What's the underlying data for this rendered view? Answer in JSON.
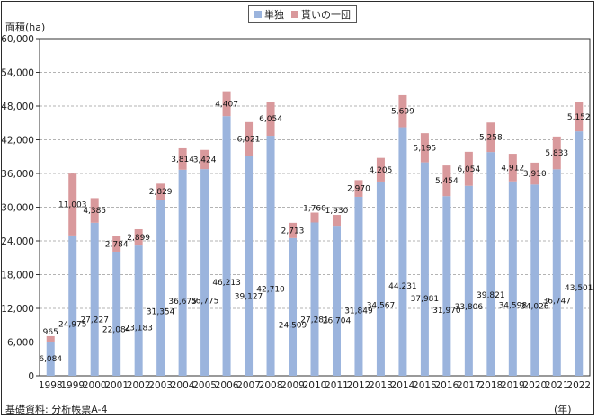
{
  "legend": {
    "items": [
      {
        "label": "単独",
        "color": "#9bb4dd"
      },
      {
        "label": "貰いの一団",
        "color": "#d9999c"
      }
    ]
  },
  "y_axis_label": "面積(ha)",
  "x_axis_unit": "(年)",
  "source": "基礎資料: 分析帳票A-4",
  "chart_data": {
    "type": "bar",
    "stacked": true,
    "categories": [
      "1998",
      "1999",
      "2000",
      "2001",
      "2002",
      "2003",
      "2004",
      "2005",
      "2006",
      "2007",
      "2008",
      "2009",
      "2010",
      "2011",
      "2012",
      "2013",
      "2014",
      "2015",
      "2016",
      "2017",
      "2018",
      "2019",
      "2020",
      "2021",
      "2022"
    ],
    "series": [
      {
        "name": "単独",
        "color": "#9bb4dd",
        "values": [
          6084,
          24975,
          27227,
          22084,
          23183,
          31354,
          36675,
          36775,
          46213,
          39127,
          42710,
          24509,
          27281,
          26704,
          31849,
          34567,
          44231,
          37981,
          31970,
          33806,
          39821,
          34598,
          34026,
          36747,
          43501
        ]
      },
      {
        "name": "貰いの一団",
        "color": "#d9999c",
        "values": [
          965,
          11003,
          4385,
          2784,
          2899,
          2829,
          3814,
          3424,
          4407,
          6021,
          6054,
          2713,
          1760,
          1930,
          2970,
          4205,
          5699,
          5195,
          5454,
          6054,
          5258,
          4912,
          3910,
          5833,
          5152
        ]
      }
    ],
    "ylim": [
      0,
      60000
    ],
    "yticks": [
      0,
      6000,
      12000,
      18000,
      24000,
      30000,
      36000,
      42000,
      48000,
      54000,
      60000
    ],
    "grid": true,
    "legend_position": "top-center"
  }
}
